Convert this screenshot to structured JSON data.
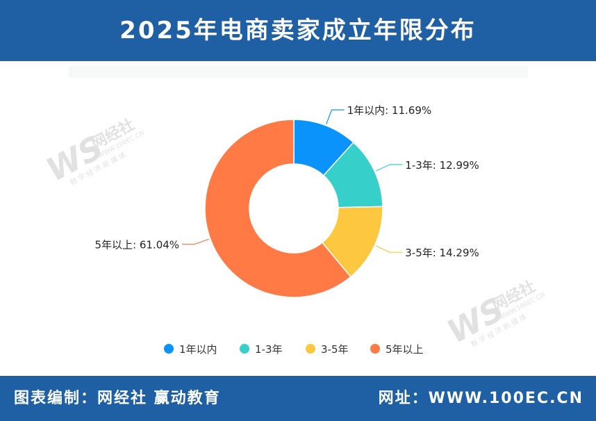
{
  "header": {
    "title": "2025年电商卖家成立年限分布"
  },
  "footer": {
    "credit": "图表编制：网经社 赢动教育",
    "website": "网址：WWW.100EC.CN"
  },
  "watermark": {
    "logo": "WS",
    "brand": "网经社",
    "domain": "WWW.100EC.CN",
    "tagline": "数 字 经 济 新 媒 体"
  },
  "colors": {
    "header_bg": "#1f5fa3",
    "footer_bg": "#1f5fa3"
  },
  "chart_data": {
    "type": "pie",
    "variant": "donut",
    "categories": [
      "1年以内",
      "1-3年",
      "3-5年",
      "5年以上"
    ],
    "values": [
      11.69,
      12.99,
      14.29,
      61.04
    ],
    "unit": "%",
    "colors": [
      "#0a93fb",
      "#36cfc9",
      "#fdc83f",
      "#ff7a45"
    ],
    "data_labels": [
      "1年以内: 11.69%",
      "1-3年: 12.99%",
      "3-5年: 14.29%",
      "5年以上: 61.04%"
    ],
    "legend": {
      "position": "bottom",
      "items": [
        "1年以内",
        "1-3年",
        "3-5年",
        "5年以上"
      ]
    }
  }
}
